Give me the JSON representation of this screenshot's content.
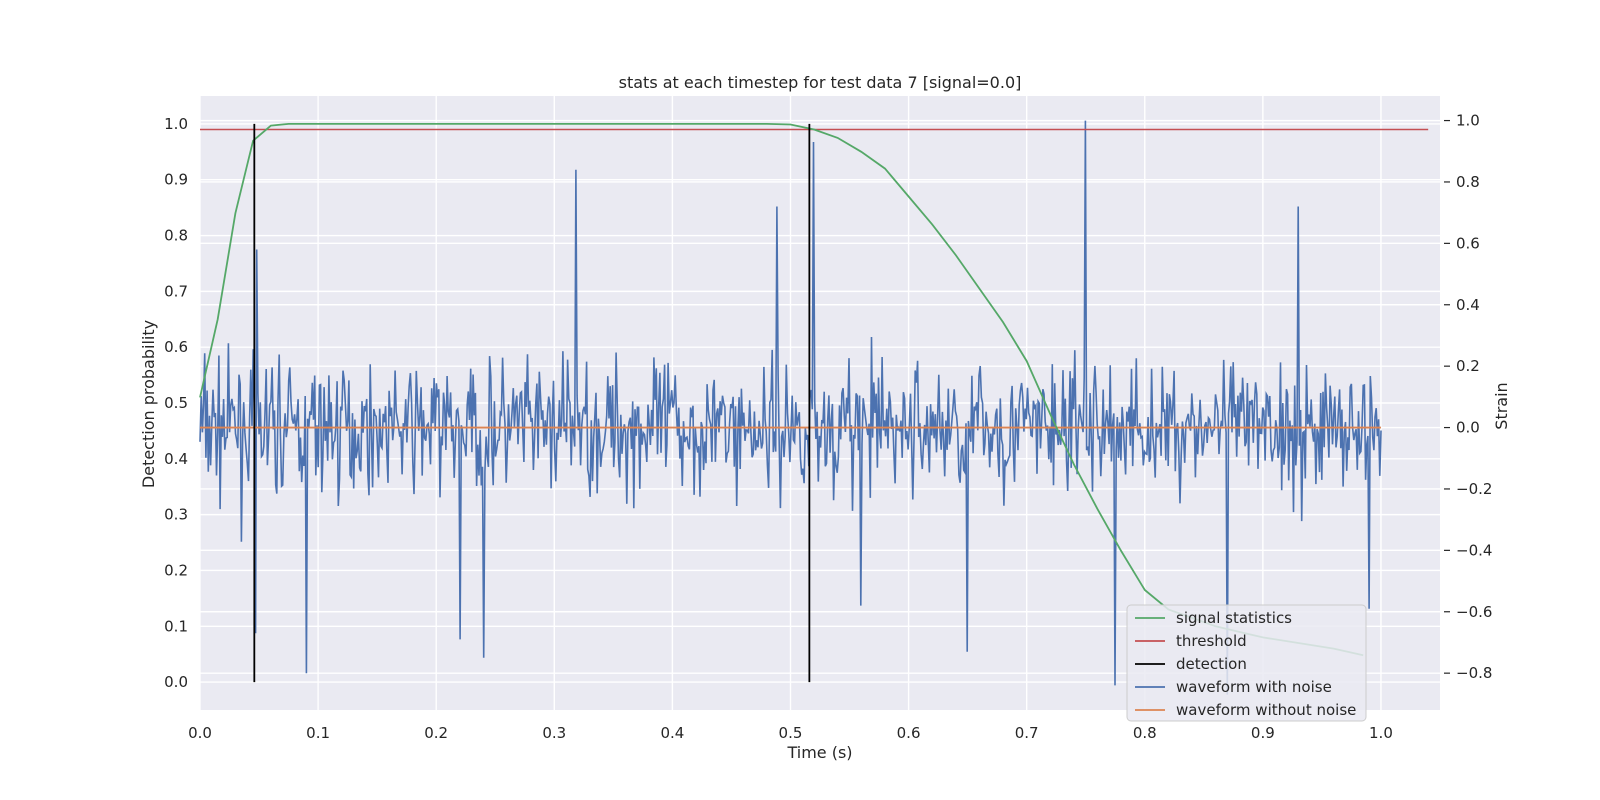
{
  "chart_data": {
    "type": "line",
    "title": "stats at each timestep for test data 7 [signal=0.0]",
    "xlabel": "Time (s)",
    "ylabel": "Detection probability",
    "y2label": "Strain",
    "xlim": [
      0.0,
      1.05
    ],
    "ylim": [
      -0.05,
      1.05
    ],
    "y2lim": [
      -0.92,
      1.08
    ],
    "xticks": [
      "0.0",
      "0.1",
      "0.2",
      "0.3",
      "0.4",
      "0.5",
      "0.6",
      "0.7",
      "0.8",
      "0.9",
      "1.0"
    ],
    "yticks": [
      "0.0",
      "0.1",
      "0.2",
      "0.3",
      "0.4",
      "0.5",
      "0.6",
      "0.7",
      "0.8",
      "0.9",
      "1.0"
    ],
    "y2ticks": [
      "−0.8",
      "−0.6",
      "−0.4",
      "−0.2",
      "0.0",
      "0.2",
      "0.4",
      "0.6",
      "0.8",
      "1.0"
    ],
    "grid": true,
    "legend_position": "lower-right",
    "series": [
      {
        "name": "signal statistics",
        "color": "#55a868",
        "axis": "left",
        "x": [
          0.0,
          0.015,
          0.03,
          0.045,
          0.06,
          0.075,
          0.1,
          0.2,
          0.3,
          0.4,
          0.48,
          0.5,
          0.52,
          0.54,
          0.56,
          0.58,
          0.6,
          0.62,
          0.64,
          0.66,
          0.68,
          0.7,
          0.72,
          0.74,
          0.76,
          0.78,
          0.8,
          0.82,
          0.84,
          0.86,
          0.88,
          0.9,
          0.93,
          0.96,
          0.985
        ],
        "y": [
          0.51,
          0.65,
          0.84,
          0.97,
          0.997,
          1.0,
          1.0,
          1.0,
          1.0,
          1.0,
          1.0,
          0.999,
          0.99,
          0.975,
          0.95,
          0.92,
          0.87,
          0.82,
          0.765,
          0.705,
          0.645,
          0.575,
          0.48,
          0.39,
          0.31,
          0.235,
          0.165,
          0.13,
          0.115,
          0.1,
          0.09,
          0.08,
          0.07,
          0.06,
          0.048
        ]
      },
      {
        "name": "threshold",
        "color": "#c44e52",
        "axis": "left",
        "x": [
          0.0,
          1.04
        ],
        "y": [
          0.99,
          0.99
        ]
      },
      {
        "name": "detection",
        "color": "#000000",
        "axis": "left",
        "verticals": [
          0.046,
          0.516
        ],
        "y": [
          0.0,
          1.0
        ]
      },
      {
        "name": "waveform with noise",
        "color": "#4c72b0",
        "axis": "right",
        "x_start": 0.0,
        "x_end": 1.0,
        "n_points": 1000,
        "amplitude": 0.27,
        "peaks": [
          [
            0.047,
            -0.67
          ],
          [
            0.048,
            0.58
          ],
          [
            0.09,
            -0.8
          ],
          [
            0.22,
            -0.69
          ],
          [
            0.24,
            -0.75
          ],
          [
            0.318,
            0.84
          ],
          [
            0.488,
            0.72
          ],
          [
            0.52,
            0.93
          ],
          [
            0.56,
            -0.58
          ],
          [
            0.65,
            -0.73
          ],
          [
            0.75,
            1.0
          ],
          [
            0.775,
            -0.84
          ],
          [
            0.87,
            -0.87
          ],
          [
            0.93,
            0.72
          ],
          [
            0.99,
            -0.59
          ]
        ]
      },
      {
        "name": "waveform without noise",
        "color": "#dd8452",
        "axis": "right",
        "x": [
          0.0,
          1.0
        ],
        "y": [
          0.0,
          0.0
        ]
      }
    ]
  }
}
